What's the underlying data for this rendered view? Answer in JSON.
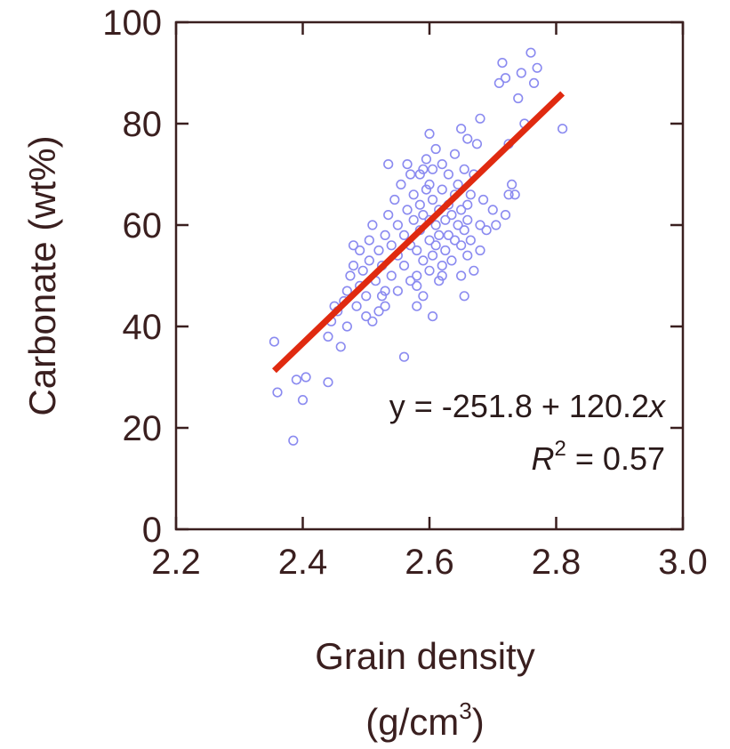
{
  "chart_data": {
    "type": "scatter",
    "xlabel": "Grain density",
    "xlabel_unit": "(g/cm",
    "xlabel_unit_sup": "3",
    "xlabel_unit_end": ")",
    "ylabel": "Carbonate (wt%)",
    "xlim": [
      2.2,
      3.0
    ],
    "ylim": [
      0,
      100
    ],
    "x_ticks": [
      "2.2",
      "2.4",
      "2.6",
      "2.8",
      "3.0"
    ],
    "x_tick_values": [
      2.2,
      2.4,
      2.6,
      2.8,
      3.0
    ],
    "y_ticks": [
      "0",
      "20",
      "40",
      "60",
      "80",
      "100"
    ],
    "y_tick_values": [
      0,
      20,
      40,
      60,
      80,
      100
    ],
    "grid": false,
    "colors": {
      "points": "#8a8af0",
      "fit": "#e02a10",
      "axis": "#3a1f1f"
    },
    "fit": {
      "intercept": -251.8,
      "slope": 120.2,
      "x_range": [
        2.355,
        2.81
      ]
    },
    "annotations": {
      "equation_prefix": "y = -251.8 + 120.2",
      "equation_var": "x",
      "r2_var": "R",
      "r2_sup": "2",
      "r2_rest": " = 0.57"
    },
    "points": [
      [
        2.355,
        37
      ],
      [
        2.36,
        27
      ],
      [
        2.385,
        17.5
      ],
      [
        2.39,
        29.5
      ],
      [
        2.4,
        25.5
      ],
      [
        2.405,
        30
      ],
      [
        2.44,
        29
      ],
      [
        2.44,
        38
      ],
      [
        2.445,
        41
      ],
      [
        2.45,
        44
      ],
      [
        2.455,
        43
      ],
      [
        2.46,
        36
      ],
      [
        2.465,
        45
      ],
      [
        2.47,
        47
      ],
      [
        2.475,
        50
      ],
      [
        2.48,
        52
      ],
      [
        2.48,
        56
      ],
      [
        2.485,
        44
      ],
      [
        2.49,
        48
      ],
      [
        2.495,
        51
      ],
      [
        2.5,
        42
      ],
      [
        2.5,
        46
      ],
      [
        2.505,
        53
      ],
      [
        2.505,
        57
      ],
      [
        2.51,
        41
      ],
      [
        2.51,
        60
      ],
      [
        2.515,
        49
      ],
      [
        2.52,
        43
      ],
      [
        2.52,
        55
      ],
      [
        2.525,
        46
      ],
      [
        2.525,
        52
      ],
      [
        2.53,
        44
      ],
      [
        2.53,
        58
      ],
      [
        2.535,
        62
      ],
      [
        2.535,
        72
      ],
      [
        2.54,
        50
      ],
      [
        2.54,
        56
      ],
      [
        2.545,
        65
      ],
      [
        2.55,
        47
      ],
      [
        2.55,
        54
      ],
      [
        2.55,
        60
      ],
      [
        2.555,
        68
      ],
      [
        2.56,
        34
      ],
      [
        2.56,
        52
      ],
      [
        2.56,
        58
      ],
      [
        2.565,
        63
      ],
      [
        2.565,
        72
      ],
      [
        2.57,
        49
      ],
      [
        2.57,
        56
      ],
      [
        2.575,
        61
      ],
      [
        2.575,
        66
      ],
      [
        2.58,
        44
      ],
      [
        2.58,
        50
      ],
      [
        2.58,
        55
      ],
      [
        2.585,
        59
      ],
      [
        2.585,
        64
      ],
      [
        2.585,
        70
      ],
      [
        2.59,
        46
      ],
      [
        2.59,
        53
      ],
      [
        2.59,
        62
      ],
      [
        2.595,
        67
      ],
      [
        2.595,
        73
      ],
      [
        2.6,
        51
      ],
      [
        2.6,
        57
      ],
      [
        2.6,
        61
      ],
      [
        2.6,
        68
      ],
      [
        2.605,
        42
      ],
      [
        2.605,
        54
      ],
      [
        2.605,
        65
      ],
      [
        2.605,
        71
      ],
      [
        2.61,
        56
      ],
      [
        2.61,
        60
      ],
      [
        2.61,
        75
      ],
      [
        2.615,
        49
      ],
      [
        2.615,
        58
      ],
      [
        2.615,
        63
      ],
      [
        2.62,
        52
      ],
      [
        2.62,
        67
      ],
      [
        2.62,
        72
      ],
      [
        2.625,
        55
      ],
      [
        2.625,
        61
      ],
      [
        2.63,
        58
      ],
      [
        2.63,
        64
      ],
      [
        2.63,
        70
      ],
      [
        2.635,
        53
      ],
      [
        2.635,
        62
      ],
      [
        2.64,
        57
      ],
      [
        2.64,
        66
      ],
      [
        2.64,
        74
      ],
      [
        2.645,
        60
      ],
      [
        2.645,
        68
      ],
      [
        2.65,
        50
      ],
      [
        2.65,
        56
      ],
      [
        2.65,
        63
      ],
      [
        2.65,
        79
      ],
      [
        2.655,
        46
      ],
      [
        2.655,
        59
      ],
      [
        2.655,
        71
      ],
      [
        2.66,
        54
      ],
      [
        2.66,
        61
      ],
      [
        2.66,
        77
      ],
      [
        2.665,
        57
      ],
      [
        2.665,
        66
      ],
      [
        2.67,
        51
      ],
      [
        2.67,
        70
      ],
      [
        2.675,
        76
      ],
      [
        2.68,
        60
      ],
      [
        2.68,
        81
      ],
      [
        2.685,
        65
      ],
      [
        2.69,
        59
      ],
      [
        2.7,
        63
      ],
      [
        2.705,
        60
      ],
      [
        2.71,
        88
      ],
      [
        2.715,
        92
      ],
      [
        2.72,
        62
      ],
      [
        2.72,
        89
      ],
      [
        2.725,
        66
      ],
      [
        2.725,
        76
      ],
      [
        2.73,
        68
      ],
      [
        2.735,
        66
      ],
      [
        2.74,
        85
      ],
      [
        2.745,
        90
      ],
      [
        2.75,
        80
      ],
      [
        2.76,
        94
      ],
      [
        2.765,
        88
      ],
      [
        2.77,
        91
      ],
      [
        2.81,
        79
      ],
      [
        2.58,
        48
      ],
      [
        2.53,
        47
      ],
      [
        2.49,
        55
      ],
      [
        2.62,
        50
      ],
      [
        2.68,
        55
      ],
      [
        2.47,
        40
      ],
      [
        2.66,
        64
      ],
      [
        2.57,
        70
      ],
      [
        2.6,
        78
      ],
      [
        2.59,
        71
      ]
    ]
  }
}
